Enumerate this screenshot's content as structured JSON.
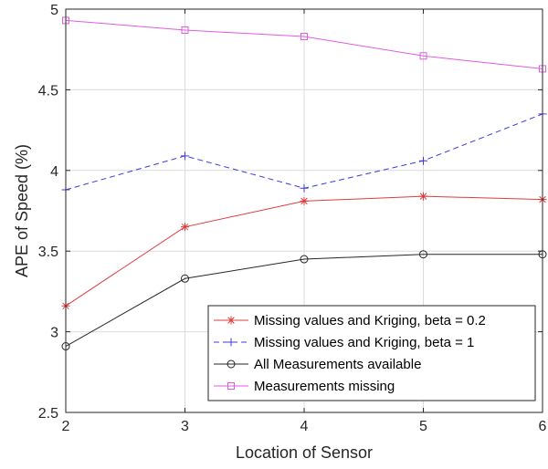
{
  "chart_data": {
    "type": "line",
    "title": "",
    "xlabel": "Location of Sensor",
    "ylabel": "APE of Speed (%)",
    "xlim": [
      2,
      6
    ],
    "ylim": [
      2.5,
      5
    ],
    "xticks": [
      2,
      3,
      4,
      5,
      6
    ],
    "yticks": [
      2.5,
      3,
      3.5,
      4,
      4.5,
      5
    ],
    "xtick_labels": [
      "2",
      "3",
      "4",
      "5",
      "6"
    ],
    "ytick_labels": [
      "2.5",
      "3",
      "3.5",
      "4",
      "4.5",
      "5"
    ],
    "grid": true,
    "legend_position": "bottom-right",
    "x": [
      2,
      3,
      4,
      5,
      6
    ],
    "series": [
      {
        "name": "Missing values and Kriging, beta = 0.2",
        "values": [
          3.16,
          3.65,
          3.81,
          3.84,
          3.82
        ],
        "color": "#e03c3c",
        "marker": "asterisk",
        "line": "solid"
      },
      {
        "name": "Missing values and Kriging, beta = 1",
        "values": [
          3.88,
          4.09,
          3.89,
          4.06,
          4.35
        ],
        "color": "#3c3cd8",
        "marker": "plus",
        "line": "dashed"
      },
      {
        "name": "All Measurements available",
        "values": [
          2.91,
          3.33,
          3.45,
          3.48,
          3.48
        ],
        "color": "#262626",
        "marker": "circle",
        "line": "solid"
      },
      {
        "name": "Measurements missing",
        "values": [
          4.93,
          4.87,
          4.83,
          4.71,
          4.63
        ],
        "color": "#e05ce0",
        "marker": "square",
        "line": "solid"
      }
    ]
  }
}
